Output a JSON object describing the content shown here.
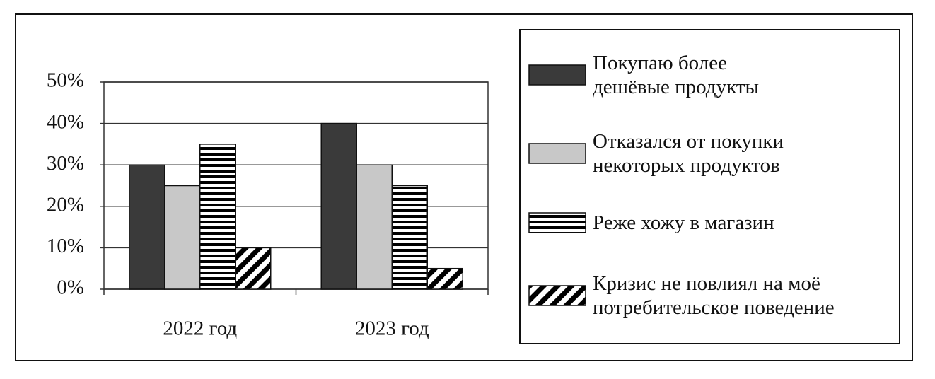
{
  "chart_data": {
    "type": "bar",
    "categories": [
      "2022 год",
      "2023 год"
    ],
    "series": [
      {
        "name": "Покупаю более\nдешёвые продукты",
        "color": "#3a3a3a",
        "pattern": "solid",
        "values": [
          30,
          40
        ]
      },
      {
        "name": "Отказался от покупки\nнекоторых продуктов",
        "color": "#c8c8c8",
        "pattern": "solid",
        "values": [
          25,
          30
        ]
      },
      {
        "name": "Реже хожу в магазин",
        "color": "#000000",
        "pattern": "horizontal-stripes",
        "values": [
          35,
          25
        ]
      },
      {
        "name": "Кризис не повлиял на моё\nпотребительское поведение",
        "color": "#000000",
        "pattern": "diagonal-stripes",
        "values": [
          10,
          5
        ]
      }
    ],
    "ylim": [
      0,
      50
    ],
    "yticks": [
      {
        "value": 0,
        "label": "0%"
      },
      {
        "value": 10,
        "label": "10%"
      },
      {
        "value": 20,
        "label": "20%"
      },
      {
        "value": 30,
        "label": "30%"
      },
      {
        "value": 40,
        "label": "40%"
      },
      {
        "value": 50,
        "label": "50%"
      }
    ],
    "grid": true,
    "legend": "right"
  }
}
